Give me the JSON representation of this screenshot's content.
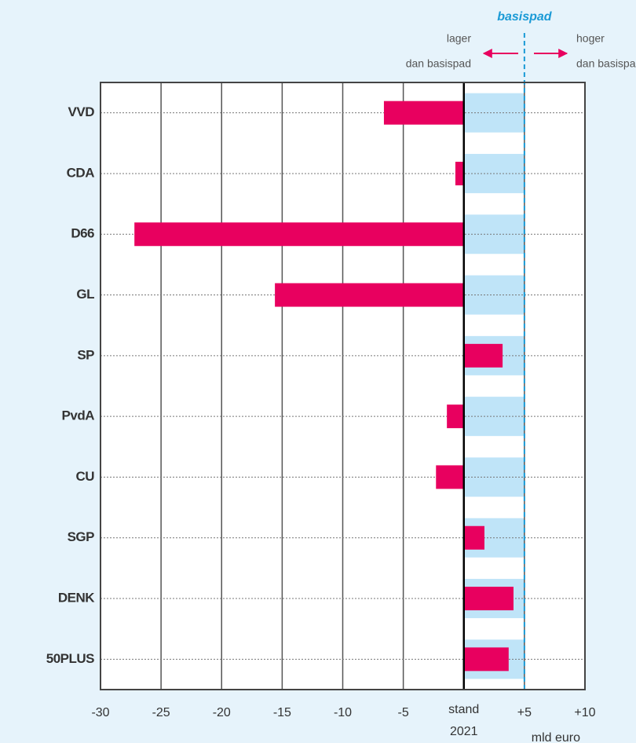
{
  "chart_data": {
    "type": "bar",
    "orientation": "horizontal",
    "categories": [
      "VVD",
      "CDA",
      "D66",
      "GL",
      "SP",
      "PvdA",
      "CU",
      "SGP",
      "DENK",
      "50PLUS"
    ],
    "values": [
      -6.6,
      -0.7,
      -27.2,
      -15.6,
      3.2,
      -1.4,
      -2.3,
      1.7,
      4.1,
      3.7
    ],
    "color": "#e8005f",
    "xlim": [
      -30,
      10
    ],
    "xticks": [
      -30,
      -25,
      -20,
      -15,
      -10,
      -5,
      {
        "value": 0,
        "label": "stand 2021"
      },
      {
        "value": 5,
        "label": "+5"
      },
      {
        "value": 10,
        "label": "+10"
      }
    ],
    "x_label": "mld euro",
    "reference": {
      "label": "basispad",
      "value": 5,
      "color": "#1a9ad6",
      "band_color": "#bfe4f8"
    },
    "lower_label": [
      "lager",
      "dan basispad"
    ],
    "higher_label": [
      "hoger",
      "dan basispad"
    ],
    "grid": true
  }
}
